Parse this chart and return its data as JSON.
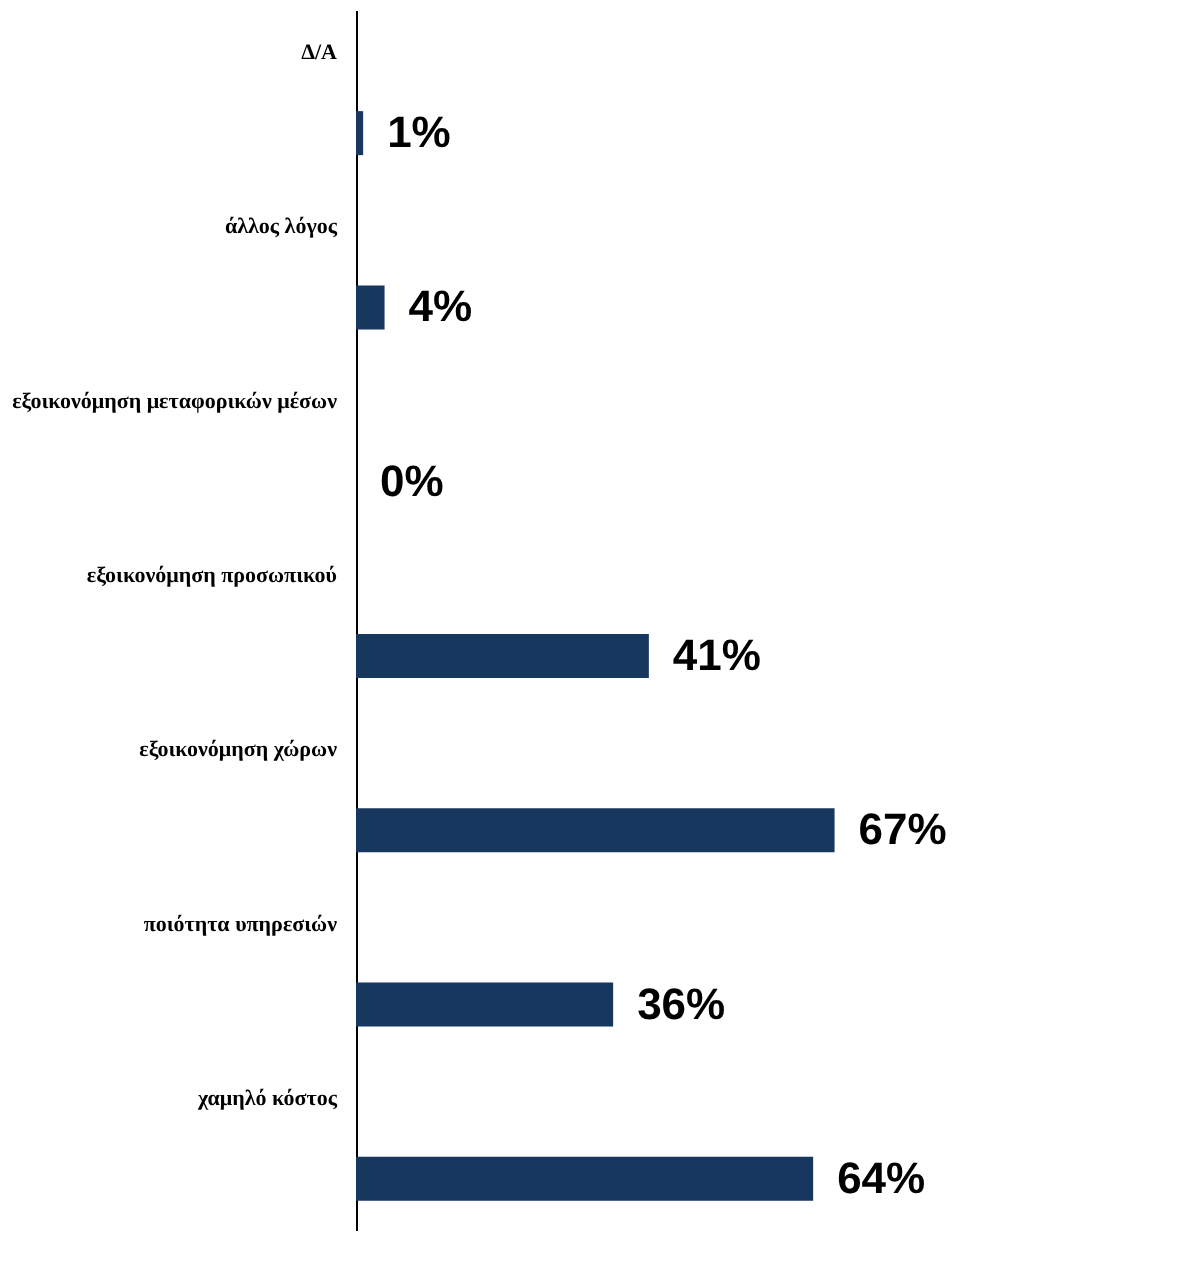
{
  "chart_data": {
    "type": "bar",
    "orientation": "horizontal",
    "categories": [
      "Δ/Α",
      "άλλος λόγος",
      "εξοικονόμηση μεταφορικών μέσων",
      "εξοικονόμηση προσωπικού",
      "εξοικονόμηση χώρων",
      "ποιότητα υπηρεσιών",
      "χαμηλό κόστος"
    ],
    "values": [
      1,
      4,
      0,
      41,
      67,
      36,
      64
    ],
    "value_labels": [
      "1%",
      "4%",
      "0%",
      "41%",
      "67%",
      "36%",
      "64%"
    ],
    "color": "#17375e",
    "grid": false
  }
}
